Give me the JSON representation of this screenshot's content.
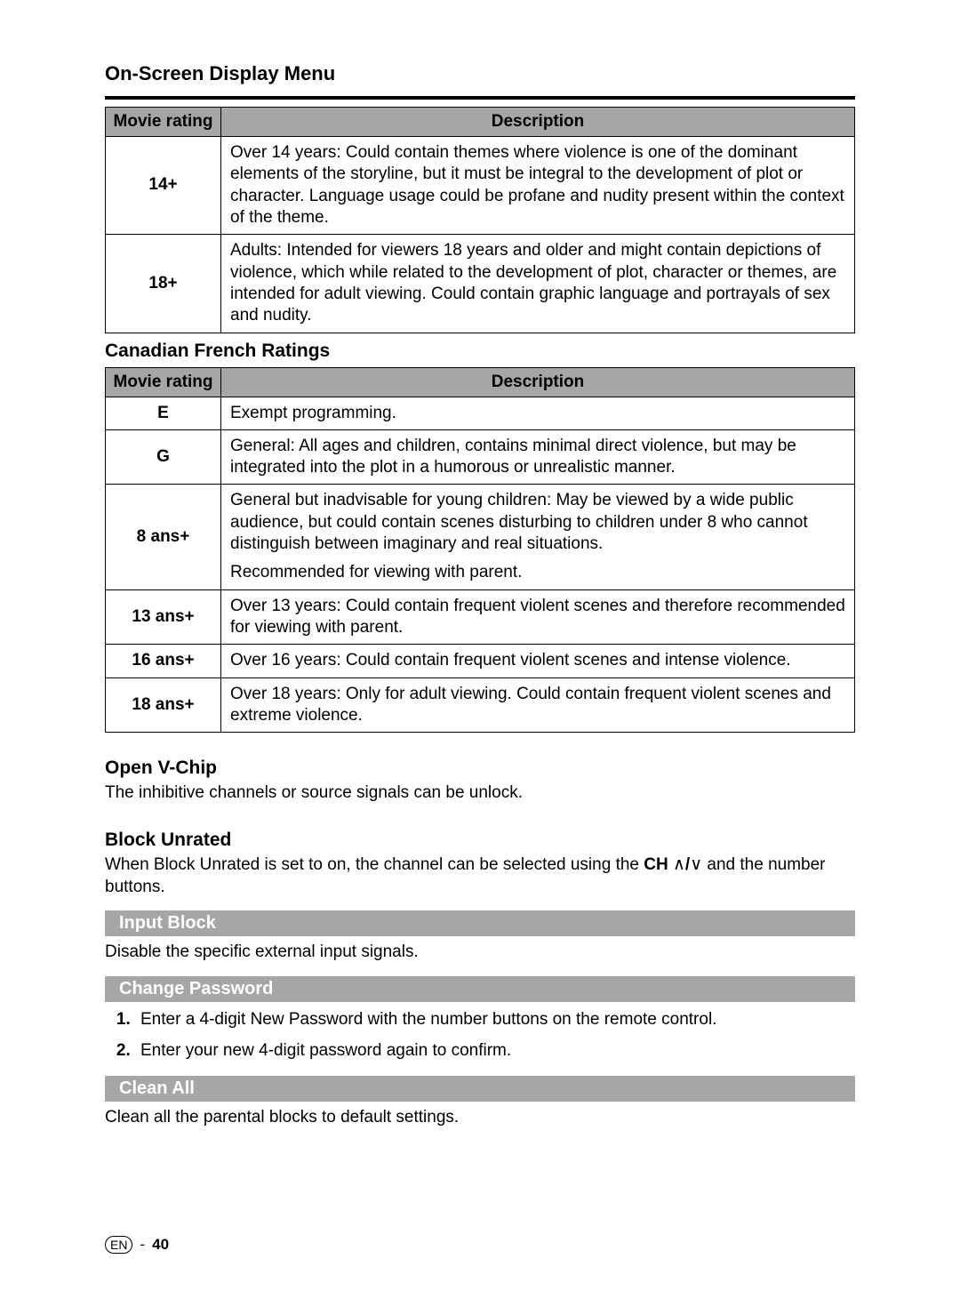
{
  "colors": {
    "header_bg": "#a6a6a6",
    "bar_text": "#ffffff",
    "text": "#000000",
    "rule": "#000000",
    "page_bg": "#ffffff"
  },
  "typography": {
    "body_fontsize": 19,
    "title_fontsize": 22,
    "subheading_fontsize": 21
  },
  "page_title": "On-Screen Display Menu",
  "table1": {
    "headers": {
      "rating": "Movie rating",
      "desc": "Description"
    },
    "rows": [
      {
        "rating": "14+",
        "desc": "Over 14 years: Could contain themes where violence is one of the dominant elements of the storyline, but it must be integral to the development of plot or character. Language usage could be profane and nudity present within the context of the theme."
      },
      {
        "rating": "18+",
        "desc": "Adults: Intended for viewers 18 years and older and might contain depictions of violence, which while related to the development of plot, character or themes, are intended for adult viewing. Could contain graphic language and portrayals of sex and nudity."
      }
    ]
  },
  "cfr_heading": "Canadian French Ratings",
  "table2": {
    "headers": {
      "rating": "Movie rating",
      "desc": "Description"
    },
    "rows": [
      {
        "rating": "E",
        "desc": "Exempt programming."
      },
      {
        "rating": "G",
        "desc": "General: All ages and children, contains minimal direct violence, but may be integrated into the plot in a humorous or unrealistic manner."
      },
      {
        "rating": "8 ans+",
        "desc": "General but inadvisable for young children: May be viewed by a wide public audience, but could contain scenes disturbing to children under 8 who cannot distinguish between imaginary and real situations.",
        "desc2": "Recommended for viewing with parent."
      },
      {
        "rating": "13 ans+",
        "desc": "Over 13 years: Could contain frequent violent scenes and therefore recommended for viewing with parent."
      },
      {
        "rating": "16 ans+",
        "desc": "Over 16 years: Could contain frequent violent scenes and intense violence."
      },
      {
        "rating": "18 ans+",
        "desc": "Over 18 years: Only for adult viewing. Could contain frequent violent scenes and extreme violence."
      }
    ]
  },
  "open_vchip": {
    "heading": "Open V-Chip",
    "body": "The inhibitive channels or source signals can be unlock."
  },
  "block_unrated": {
    "heading": "Block Unrated",
    "body_pre": "When Block Unrated is set to on, the channel can be selected using the ",
    "ch_label": "CH",
    "chev_up": "∧",
    "slash": "/",
    "chev_down": "∨",
    "body_post": " and the number buttons."
  },
  "input_block": {
    "bar": "Input Block",
    "body": "Disable the specific external input signals."
  },
  "change_password": {
    "bar": "Change Password",
    "steps": [
      "Enter a 4-digit New Password with the number buttons on the remote control.",
      "Enter your new 4-digit password again to confirm."
    ]
  },
  "clean_all": {
    "bar": "Clean All",
    "body": "Clean all the parental blocks to default settings."
  },
  "footer": {
    "lang": "EN",
    "dash": "-",
    "page": "40"
  }
}
